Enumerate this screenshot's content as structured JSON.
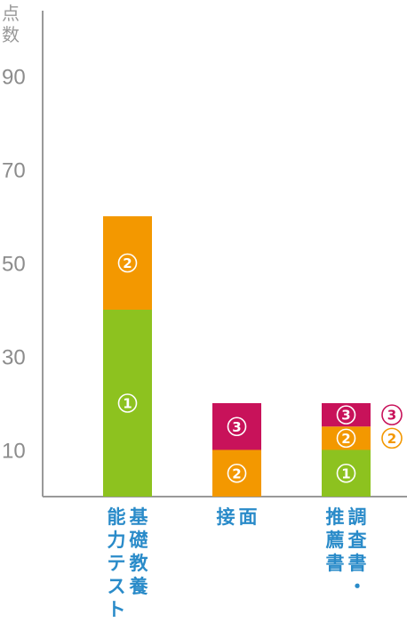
{
  "chart_data": {
    "type": "bar",
    "stacked": true,
    "ylabel": "点数",
    "ylim": [
      0,
      100
    ],
    "y_ticks": [
      "10",
      "30",
      "50",
      "70",
      "90"
    ],
    "y_tick_values": [
      10,
      30,
      50,
      70,
      90
    ],
    "categories": [
      [
        "基礎教養",
        "能力テスト"
      ],
      [
        "面",
        "接"
      ],
      [
        "調査書・",
        "推薦書"
      ]
    ],
    "series": [
      {
        "label": "①",
        "color": "#8dc21f",
        "values": [
          40,
          0,
          10
        ]
      },
      {
        "label": "②",
        "color": "#f39800",
        "values": [
          20,
          10,
          5
        ]
      },
      {
        "label": "③",
        "color": "#c8125a",
        "values": [
          0,
          10,
          5
        ]
      }
    ],
    "legend": {
      "placement": "right of last bar",
      "entries": [
        {
          "label": "③",
          "color": "#c8125a"
        },
        {
          "label": "②",
          "color": "#f39800"
        }
      ]
    },
    "grid": false
  },
  "colors": {
    "axis": "#999999",
    "tick_text": "#8c8c8c",
    "category_text": "#2a8bc9"
  }
}
